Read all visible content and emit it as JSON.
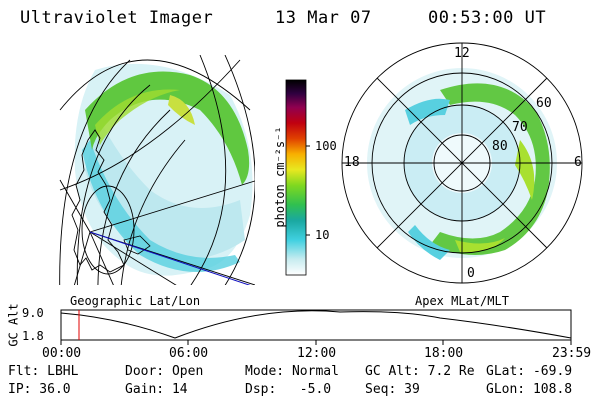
{
  "header": {
    "instrument": "Ultraviolet Imager",
    "date": "13 Mar 07",
    "time": "00:53:00 UT"
  },
  "colorbar": {
    "unit_label": "photon cm⁻²s⁻¹",
    "ticks": [
      "100",
      "10"
    ]
  },
  "geo_panel": {
    "caption": "Geographic Lat/Lon"
  },
  "polar_panel": {
    "caption": "Apex MLat/MLT",
    "mlt_labels": {
      "top": "12",
      "left": "18",
      "right": "6",
      "bottom": "0"
    },
    "lat_labels": [
      "60",
      "70",
      "80"
    ]
  },
  "timeline": {
    "ylabel": "GC Alt",
    "ymax": "9.0",
    "ymin": "1.8",
    "x_ticks": [
      "00:00",
      "06:00",
      "12:00",
      "18:00",
      "23:59"
    ],
    "marker_time": "00:53"
  },
  "status": {
    "row1": [
      {
        "name": "filter",
        "text": "Flt: LBHL"
      },
      {
        "name": "door",
        "text": "Door: Open"
      },
      {
        "name": "mode",
        "text": "Mode: Normal"
      },
      {
        "name": "gc-alt",
        "text": "GC Alt: 7.2 Re"
      },
      {
        "name": "glat",
        "text": "GLat: -69.9"
      }
    ],
    "row2": [
      {
        "name": "ip",
        "text": "IP: 36.0"
      },
      {
        "name": "gain",
        "text": "Gain: 14"
      },
      {
        "name": "dsp",
        "text": "Dsp:   -5.0"
      },
      {
        "name": "seq",
        "text": "Seq: 39"
      },
      {
        "name": "glon",
        "text": "GLon: 108.8"
      }
    ]
  }
}
